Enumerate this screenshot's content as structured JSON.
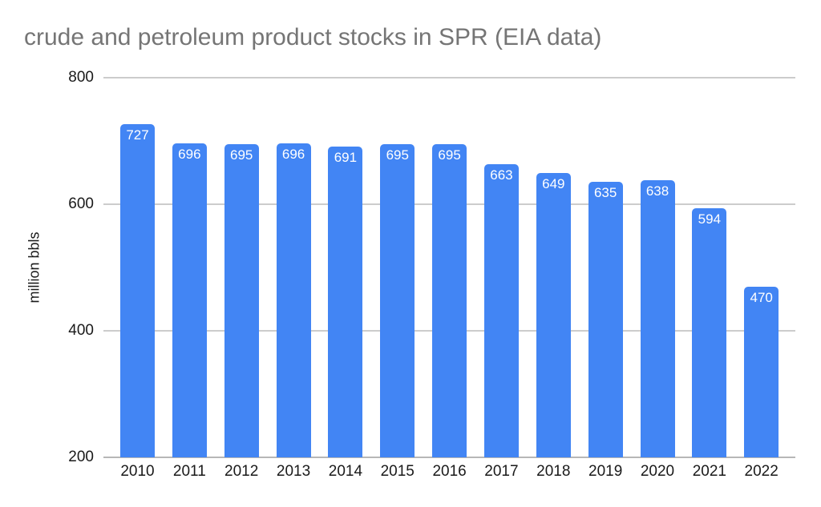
{
  "chart_data": {
    "type": "bar",
    "title": "crude and petroleum product stocks in SPR (EIA data)",
    "categories": [
      "2010",
      "2011",
      "2012",
      "2013",
      "2014",
      "2015",
      "2016",
      "2017",
      "2018",
      "2019",
      "2020",
      "2021",
      "2022"
    ],
    "values": [
      727,
      696,
      695,
      696,
      691,
      695,
      695,
      663,
      649,
      635,
      638,
      594,
      470
    ],
    "xlabel": "",
    "ylabel": "million bbls",
    "ylim": [
      200,
      800
    ],
    "yticks": [
      800,
      600,
      400,
      200
    ],
    "grid": true,
    "legend": false,
    "data_labels": true,
    "colors": {
      "bar": "#4285f4",
      "bar_label": "#ffffff",
      "gridline": "#cccccc",
      "axis_line": "#b7b7b7",
      "tick_label": "#1a1a1a",
      "title": "#757575",
      "background": "#ffffff"
    }
  }
}
